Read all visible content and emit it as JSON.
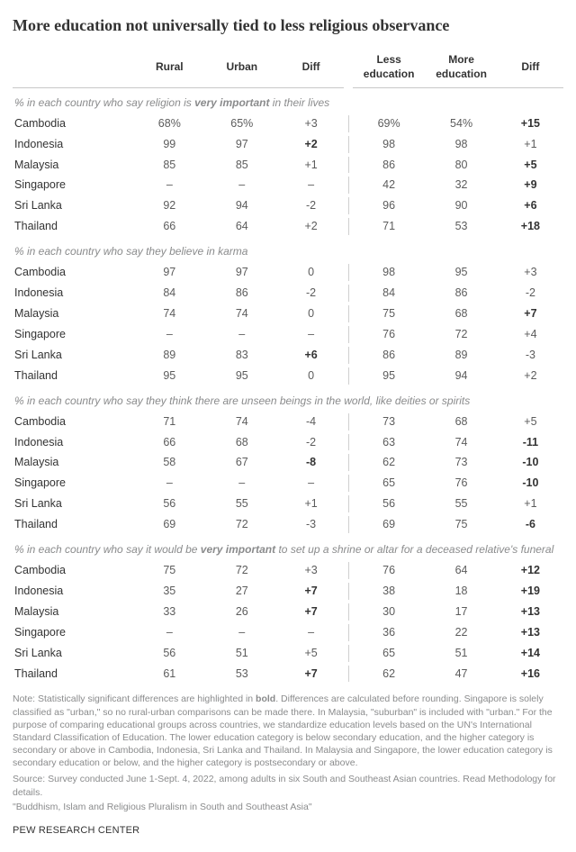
{
  "title": "More education not universally tied to less religious observance",
  "columns": {
    "rural": "Rural",
    "urban": "Urban",
    "diff1": "Diff",
    "less": "Less education",
    "more": "More education",
    "diff2": "Diff"
  },
  "sections": [
    {
      "label_pre": "% in each country who say religion is ",
      "label_bold": "very important",
      "label_post": " in their lives",
      "rows": [
        {
          "country": "Cambodia",
          "rural": "68%",
          "urban": "65%",
          "d1": "+3",
          "d1b": false,
          "less": "69%",
          "more": "54%",
          "d2": "+15",
          "d2b": true
        },
        {
          "country": "Indonesia",
          "rural": "99",
          "urban": "97",
          "d1": "+2",
          "d1b": true,
          "less": "98",
          "more": "98",
          "d2": "+1",
          "d2b": false
        },
        {
          "country": "Malaysia",
          "rural": "85",
          "urban": "85",
          "d1": "+1",
          "d1b": false,
          "less": "86",
          "more": "80",
          "d2": "+5",
          "d2b": true
        },
        {
          "country": "Singapore",
          "rural": "–",
          "urban": "–",
          "d1": "–",
          "d1b": false,
          "less": "42",
          "more": "32",
          "d2": "+9",
          "d2b": true
        },
        {
          "country": "Sri Lanka",
          "rural": "92",
          "urban": "94",
          "d1": "-2",
          "d1b": false,
          "less": "96",
          "more": "90",
          "d2": "+6",
          "d2b": true
        },
        {
          "country": "Thailand",
          "rural": "66",
          "urban": "64",
          "d1": "+2",
          "d1b": false,
          "less": "71",
          "more": "53",
          "d2": "+18",
          "d2b": true
        }
      ]
    },
    {
      "label_pre": "% in each country who say they believe in karma",
      "label_bold": "",
      "label_post": "",
      "rows": [
        {
          "country": "Cambodia",
          "rural": "97",
          "urban": "97",
          "d1": "0",
          "d1b": false,
          "less": "98",
          "more": "95",
          "d2": "+3",
          "d2b": false
        },
        {
          "country": "Indonesia",
          "rural": "84",
          "urban": "86",
          "d1": "-2",
          "d1b": false,
          "less": "84",
          "more": "86",
          "d2": "-2",
          "d2b": false
        },
        {
          "country": "Malaysia",
          "rural": "74",
          "urban": "74",
          "d1": "0",
          "d1b": false,
          "less": "75",
          "more": "68",
          "d2": "+7",
          "d2b": true
        },
        {
          "country": "Singapore",
          "rural": "–",
          "urban": "–",
          "d1": "–",
          "d1b": false,
          "less": "76",
          "more": "72",
          "d2": "+4",
          "d2b": false
        },
        {
          "country": "Sri Lanka",
          "rural": "89",
          "urban": "83",
          "d1": "+6",
          "d1b": true,
          "less": "86",
          "more": "89",
          "d2": "-3",
          "d2b": false
        },
        {
          "country": "Thailand",
          "rural": "95",
          "urban": "95",
          "d1": "0",
          "d1b": false,
          "less": "95",
          "more": "94",
          "d2": "+2",
          "d2b": false
        }
      ]
    },
    {
      "label_pre": "% in each country who say they think there are unseen beings in the world, like deities or spirits",
      "label_bold": "",
      "label_post": "",
      "rows": [
        {
          "country": "Cambodia",
          "rural": "71",
          "urban": "74",
          "d1": "-4",
          "d1b": false,
          "less": "73",
          "more": "68",
          "d2": "+5",
          "d2b": false
        },
        {
          "country": "Indonesia",
          "rural": "66",
          "urban": "68",
          "d1": "-2",
          "d1b": false,
          "less": "63",
          "more": "74",
          "d2": "-11",
          "d2b": true
        },
        {
          "country": "Malaysia",
          "rural": "58",
          "urban": "67",
          "d1": "-8",
          "d1b": true,
          "less": "62",
          "more": "73",
          "d2": "-10",
          "d2b": true
        },
        {
          "country": "Singapore",
          "rural": "–",
          "urban": "–",
          "d1": "–",
          "d1b": false,
          "less": "65",
          "more": "76",
          "d2": "-10",
          "d2b": true
        },
        {
          "country": "Sri Lanka",
          "rural": "56",
          "urban": "55",
          "d1": "+1",
          "d1b": false,
          "less": "56",
          "more": "55",
          "d2": "+1",
          "d2b": false
        },
        {
          "country": "Thailand",
          "rural": "69",
          "urban": "72",
          "d1": "-3",
          "d1b": false,
          "less": "69",
          "more": "75",
          "d2": "-6",
          "d2b": true
        }
      ]
    },
    {
      "label_pre": "% in each country who say it would be ",
      "label_bold": "very important",
      "label_post": " to set up a shrine or altar for a deceased relative's funeral",
      "rows": [
        {
          "country": "Cambodia",
          "rural": "75",
          "urban": "72",
          "d1": "+3",
          "d1b": false,
          "less": "76",
          "more": "64",
          "d2": "+12",
          "d2b": true
        },
        {
          "country": "Indonesia",
          "rural": "35",
          "urban": "27",
          "d1": "+7",
          "d1b": true,
          "less": "38",
          "more": "18",
          "d2": "+19",
          "d2b": true
        },
        {
          "country": "Malaysia",
          "rural": "33",
          "urban": "26",
          "d1": "+7",
          "d1b": true,
          "less": "30",
          "more": "17",
          "d2": "+13",
          "d2b": true
        },
        {
          "country": "Singapore",
          "rural": "–",
          "urban": "–",
          "d1": "–",
          "d1b": false,
          "less": "36",
          "more": "22",
          "d2": "+13",
          "d2b": true
        },
        {
          "country": "Sri Lanka",
          "rural": "56",
          "urban": "51",
          "d1": "+5",
          "d1b": false,
          "less": "65",
          "more": "51",
          "d2": "+14",
          "d2b": true
        },
        {
          "country": "Thailand",
          "rural": "61",
          "urban": "53",
          "d1": "+7",
          "d1b": true,
          "less": "62",
          "more": "47",
          "d2": "+16",
          "d2b": true
        }
      ]
    }
  ],
  "note_label": "Note: ",
  "note": "Statistically significant differences are highlighted in bold. Differences are calculated before rounding. Singapore is solely classified as \"urban,\" so no rural-urban comparisons can be made there. In Malaysia, \"suburban\" is included with \"urban.\" For the purpose of comparing educational groups across countries, we standardize education levels based on the UN's International Standard Classification of Education. The lower education category is below secondary education, and the higher category is secondary or above in Cambodia, Indonesia, Sri Lanka and Thailand. In Malaysia and Singapore, the lower education category is secondary education or below, and the higher category is postsecondary or above.",
  "source": "Source: Survey conducted June 1-Sept. 4, 2022, among adults in six South and Southeast Asian countries. Read Methodology for details.",
  "report": "\"Buddhism, Islam and Religious Pluralism in South and Southeast Asia\"",
  "footer": "PEW RESEARCH CENTER"
}
